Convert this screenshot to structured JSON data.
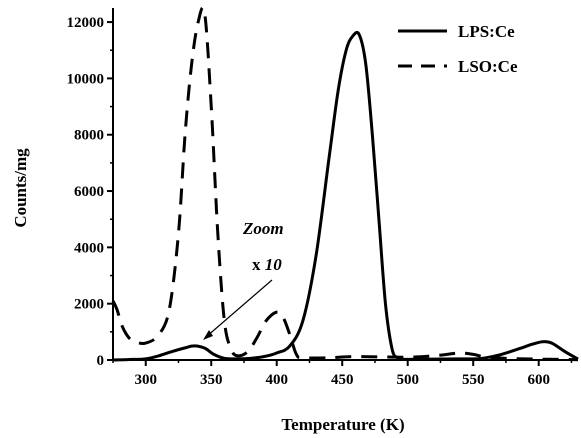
{
  "chart_data": {
    "type": "line",
    "xlabel": "Temperature (K)",
    "ylabel": "Counts/mg",
    "xlim": [
      275,
      630
    ],
    "ylim": [
      0,
      12500
    ],
    "x_ticks": [
      300,
      350,
      400,
      450,
      500,
      550,
      600
    ],
    "y_ticks": [
      0,
      2000,
      4000,
      6000,
      8000,
      10000,
      12000
    ],
    "x_tick_labels": [
      "300",
      "350",
      "400",
      "450",
      "500",
      "550",
      "600"
    ],
    "y_tick_labels": [
      "0",
      "2000",
      "4000",
      "6000",
      "8000",
      "10000",
      "12000"
    ],
    "legend_position": "top-right",
    "annotation": {
      "line1": "Zoom",
      "line2_prefix": "x ",
      "line2_value": "10",
      "points_to": [
        345,
        150
      ]
    },
    "series": [
      {
        "name": "LPS:Ce",
        "style": "solid",
        "x": [
          275,
          290,
          300,
          310,
          320,
          330,
          337,
          345,
          352,
          360,
          370,
          380,
          390,
          400,
          410,
          420,
          430,
          440,
          447,
          453,
          458,
          463,
          468,
          473,
          478,
          483,
          488,
          492,
          496,
          500,
          520,
          540,
          555,
          570,
          585,
          595,
          603,
          610,
          620,
          630
        ],
        "y": [
          0,
          20,
          40,
          150,
          300,
          430,
          500,
          420,
          200,
          60,
          40,
          60,
          120,
          250,
          500,
          1400,
          3700,
          7200,
          9600,
          11000,
          11500,
          11550,
          10500,
          8000,
          5000,
          2000,
          400,
          80,
          30,
          20,
          30,
          40,
          50,
          180,
          400,
          560,
          650,
          600,
          300,
          30
        ]
      },
      {
        "name": "LSO:Ce",
        "style": "dashed",
        "x": [
          275,
          278,
          282,
          287,
          292,
          300,
          310,
          318,
          325,
          330,
          335,
          340,
          345,
          350,
          355,
          360,
          365,
          370,
          378,
          385,
          392,
          400,
          405,
          410,
          415,
          420,
          440,
          460,
          500,
          520,
          530,
          540,
          550,
          560,
          580,
          600,
          620,
          630
        ],
        "y": [
          2100,
          1800,
          1200,
          800,
          650,
          600,
          900,
          1800,
          4500,
          8000,
          10500,
          12000,
          12300,
          9000,
          4500,
          1400,
          400,
          150,
          300,
          800,
          1400,
          1700,
          1500,
          900,
          200,
          80,
          80,
          120,
          100,
          150,
          200,
          250,
          200,
          100,
          50,
          30,
          20,
          10
        ]
      }
    ]
  }
}
